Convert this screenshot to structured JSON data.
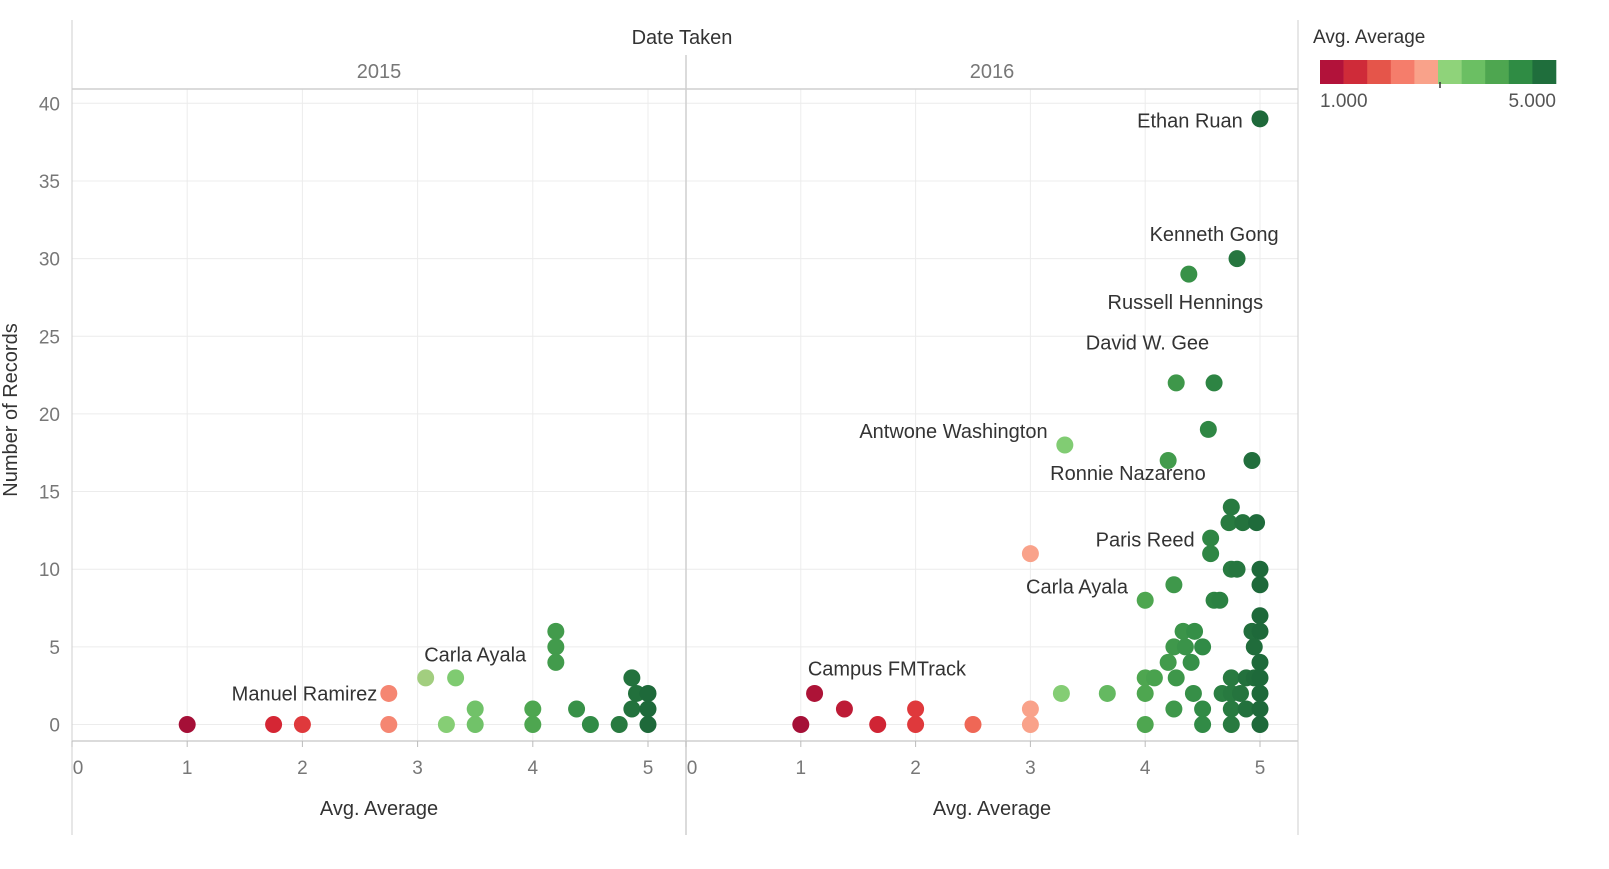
{
  "header": {
    "column_title": "Date Taken"
  },
  "legend": {
    "title": "Avg. Average",
    "min_label": "1.000",
    "max_label": "5.000",
    "colors": [
      "#b2123a",
      "#cf2b39",
      "#e5554a",
      "#f57d6b",
      "#f9a28a",
      "#8fd37a",
      "#6bbf63",
      "#4ea650",
      "#2f8c44",
      "#1f6e3c"
    ]
  },
  "chart_data": {
    "type": "scatter",
    "xlabel": "Avg. Average",
    "ylabel": "Number of Records",
    "xlim": [
      0,
      5
    ],
    "ylim": [
      -1,
      42
    ],
    "x_ticks": [
      0,
      1,
      2,
      3,
      4,
      5
    ],
    "y_ticks": [
      0,
      5,
      10,
      15,
      20,
      25,
      30,
      35,
      40
    ],
    "y_tick_labels": [
      "0",
      "5",
      "10",
      "15",
      "20",
      "25",
      "30",
      "35",
      "40"
    ],
    "color_scale": {
      "field": "Avg. Average",
      "min": 1,
      "max": 5
    },
    "grid": true,
    "legend_position": "top-right",
    "panes": [
      {
        "name": "2015",
        "points": [
          {
            "x": 1.0,
            "y": 0
          },
          {
            "x": 1.75,
            "y": 0
          },
          {
            "x": 2.0,
            "y": 0
          },
          {
            "x": 2.75,
            "y": 2
          },
          {
            "x": 2.75,
            "y": 0
          },
          {
            "x": 3.07,
            "y": 3
          },
          {
            "x": 3.33,
            "y": 3
          },
          {
            "x": 3.25,
            "y": 0
          },
          {
            "x": 3.5,
            "y": 1
          },
          {
            "x": 3.5,
            "y": 0
          },
          {
            "x": 4.0,
            "y": 1
          },
          {
            "x": 4.0,
            "y": 0
          },
          {
            "x": 4.2,
            "y": 6
          },
          {
            "x": 4.2,
            "y": 5
          },
          {
            "x": 4.2,
            "y": 4
          },
          {
            "x": 4.38,
            "y": 1
          },
          {
            "x": 4.5,
            "y": 0
          },
          {
            "x": 4.75,
            "y": 0
          },
          {
            "x": 4.86,
            "y": 3
          },
          {
            "x": 4.86,
            "y": 1
          },
          {
            "x": 4.9,
            "y": 2
          },
          {
            "x": 5.0,
            "y": 2
          },
          {
            "x": 5.0,
            "y": 1
          },
          {
            "x": 5.0,
            "y": 0
          }
        ],
        "labels": [
          {
            "text": "Carla Ayala",
            "x": 3.5,
            "y": 4.5,
            "anchor": "middle"
          },
          {
            "text": "Manuel Ramirez",
            "x": 2.65,
            "y": 2,
            "anchor": "end"
          }
        ]
      },
      {
        "name": "2016",
        "points": [
          {
            "x": 5.0,
            "y": 39
          },
          {
            "x": 4.8,
            "y": 30
          },
          {
            "x": 4.38,
            "y": 29
          },
          {
            "x": 4.27,
            "y": 22
          },
          {
            "x": 4.6,
            "y": 22
          },
          {
            "x": 3.3,
            "y": 18
          },
          {
            "x": 4.55,
            "y": 19
          },
          {
            "x": 4.2,
            "y": 17
          },
          {
            "x": 4.93,
            "y": 17
          },
          {
            "x": 4.75,
            "y": 14
          },
          {
            "x": 4.73,
            "y": 13
          },
          {
            "x": 4.85,
            "y": 13
          },
          {
            "x": 4.97,
            "y": 13
          },
          {
            "x": 4.57,
            "y": 12
          },
          {
            "x": 4.57,
            "y": 11
          },
          {
            "x": 3.0,
            "y": 11
          },
          {
            "x": 5.0,
            "y": 10
          },
          {
            "x": 4.75,
            "y": 10
          },
          {
            "x": 4.8,
            "y": 10
          },
          {
            "x": 4.25,
            "y": 9
          },
          {
            "x": 5.0,
            "y": 9
          },
          {
            "x": 4.0,
            "y": 8
          },
          {
            "x": 4.6,
            "y": 8
          },
          {
            "x": 4.65,
            "y": 8
          },
          {
            "x": 5.0,
            "y": 7
          },
          {
            "x": 4.93,
            "y": 6
          },
          {
            "x": 5.0,
            "y": 6
          },
          {
            "x": 4.33,
            "y": 6
          },
          {
            "x": 4.43,
            "y": 6
          },
          {
            "x": 4.25,
            "y": 5
          },
          {
            "x": 4.35,
            "y": 5
          },
          {
            "x": 4.5,
            "y": 5
          },
          {
            "x": 4.95,
            "y": 5
          },
          {
            "x": 4.2,
            "y": 4
          },
          {
            "x": 4.4,
            "y": 4
          },
          {
            "x": 5.0,
            "y": 4
          },
          {
            "x": 4.0,
            "y": 3
          },
          {
            "x": 4.08,
            "y": 3
          },
          {
            "x": 4.27,
            "y": 3
          },
          {
            "x": 4.75,
            "y": 3
          },
          {
            "x": 4.88,
            "y": 3
          },
          {
            "x": 4.95,
            "y": 3
          },
          {
            "x": 5.0,
            "y": 3
          },
          {
            "x": 1.12,
            "y": 2
          },
          {
            "x": 3.27,
            "y": 2
          },
          {
            "x": 3.67,
            "y": 2
          },
          {
            "x": 4.0,
            "y": 2
          },
          {
            "x": 4.42,
            "y": 2
          },
          {
            "x": 4.67,
            "y": 2
          },
          {
            "x": 4.75,
            "y": 2
          },
          {
            "x": 4.83,
            "y": 2
          },
          {
            "x": 5.0,
            "y": 2
          },
          {
            "x": 1.38,
            "y": 1
          },
          {
            "x": 2.0,
            "y": 1
          },
          {
            "x": 3.0,
            "y": 1
          },
          {
            "x": 4.25,
            "y": 1
          },
          {
            "x": 4.5,
            "y": 1
          },
          {
            "x": 4.75,
            "y": 1
          },
          {
            "x": 4.88,
            "y": 1
          },
          {
            "x": 5.0,
            "y": 1
          },
          {
            "x": 1.0,
            "y": 0
          },
          {
            "x": 1.67,
            "y": 0
          },
          {
            "x": 2.0,
            "y": 0
          },
          {
            "x": 2.5,
            "y": 0
          },
          {
            "x": 3.0,
            "y": 0
          },
          {
            "x": 4.0,
            "y": 0
          },
          {
            "x": 4.5,
            "y": 0
          },
          {
            "x": 4.75,
            "y": 0
          },
          {
            "x": 5.0,
            "y": 0
          }
        ],
        "labels": [
          {
            "text": "Ethan Ruan",
            "x": 4.85,
            "y": 38.9,
            "anchor": "end"
          },
          {
            "text": "Kenneth Gong",
            "x": 4.6,
            "y": 31.6,
            "anchor": "middle"
          },
          {
            "text": "Russell Hennings",
            "x": 4.35,
            "y": 27.2,
            "anchor": "middle"
          },
          {
            "text": "David W. Gee",
            "x": 4.02,
            "y": 24.6,
            "anchor": "middle"
          },
          {
            "text": "Antwone Washington",
            "x": 3.15,
            "y": 18.9,
            "anchor": "end"
          },
          {
            "text": "Ronnie Nazareno",
            "x": 3.85,
            "y": 16.2,
            "anchor": "middle"
          },
          {
            "text": "Paris Reed",
            "x": 4.43,
            "y": 11.9,
            "anchor": "end"
          },
          {
            "text": "Carla Ayala",
            "x": 3.85,
            "y": 8.9,
            "anchor": "end"
          },
          {
            "text": "Campus FMTrack",
            "x": 1.75,
            "y": 3.6,
            "anchor": "middle"
          }
        ]
      }
    ]
  }
}
